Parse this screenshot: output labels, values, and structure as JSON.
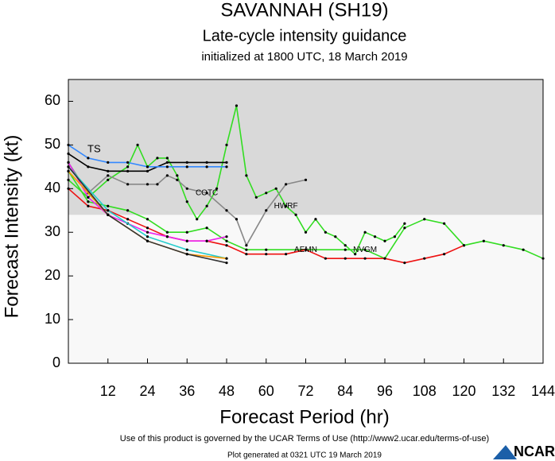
{
  "chart_data": {
    "type": "line",
    "title": "SAVANNAH (SH19)",
    "subtitle": "Late-cycle intensity guidance",
    "caption": "initialized at 1800 UTC, 18 March 2019",
    "x_label": "Forecast Period (hr)",
    "y_label": "Forecast Intensity (kt)",
    "xlim": [
      0,
      144
    ],
    "ylim": [
      0,
      65
    ],
    "xticks": [
      12,
      24,
      36,
      48,
      60,
      72,
      84,
      96,
      108,
      120,
      132,
      144
    ],
    "yticks": [
      0,
      10,
      20,
      30,
      40,
      50,
      60
    ],
    "shade_from": 34,
    "shade_color": "#d9d9d9",
    "band_label": "TS",
    "series": [
      {
        "name": "HWRF",
        "color": "#33dd22",
        "x": [
          0,
          6,
          12,
          18,
          21,
          24,
          27,
          30,
          33,
          36,
          39,
          42,
          45,
          48,
          51,
          54,
          57,
          60,
          63,
          66,
          69,
          72,
          75,
          78,
          81,
          84,
          87,
          90,
          93,
          96,
          99,
          102
        ],
        "values": [
          42,
          38,
          42,
          45,
          50,
          45,
          47,
          47,
          43,
          37,
          33,
          36,
          40,
          50,
          59,
          43,
          38,
          39,
          40,
          36,
          34,
          30,
          33,
          30,
          29,
          27,
          25,
          30,
          29,
          28,
          29,
          32
        ]
      },
      {
        "name": "NVGM",
        "color": "#33dd22",
        "x": [
          0,
          6,
          12,
          18,
          24,
          30,
          36,
          42,
          48,
          54,
          60,
          72,
          84,
          90,
          96,
          102,
          108,
          114,
          120,
          126,
          132,
          138,
          144
        ],
        "values": [
          44,
          37,
          36,
          35,
          33,
          30,
          30,
          31,
          28,
          26,
          26,
          26,
          26,
          26,
          24,
          31,
          33,
          32,
          27,
          28,
          27,
          26,
          24
        ]
      },
      {
        "name": "AEMN",
        "color": "#ee1111",
        "x": [
          0,
          6,
          12,
          18,
          24,
          30,
          36,
          42,
          48,
          54,
          60,
          66,
          72,
          78,
          84,
          90,
          96,
          102,
          108,
          114,
          120
        ],
        "values": [
          40,
          36,
          35,
          33,
          31,
          29,
          28,
          28,
          27,
          25,
          25,
          25,
          26,
          24,
          24,
          24,
          24,
          23,
          24,
          25,
          27
        ]
      },
      {
        "name": "COTC",
        "color": "#888888",
        "x": [
          0,
          6,
          12,
          18,
          24,
          27,
          30,
          33,
          36,
          42,
          48,
          51,
          54,
          60,
          66,
          72
        ],
        "values": [
          46,
          39,
          43,
          41,
          41,
          41,
          43,
          42,
          40,
          39,
          35,
          33,
          27,
          35,
          41,
          42
        ]
      },
      {
        "color": "#000000",
        "x": [
          0,
          6,
          12,
          18,
          24,
          30,
          36,
          42,
          48
        ],
        "values": [
          48,
          45,
          44,
          44,
          44,
          46,
          46,
          46,
          46
        ]
      },
      {
        "color": "#3388ff",
        "x": [
          0,
          6,
          12,
          18,
          24,
          30,
          36,
          42,
          48
        ],
        "values": [
          50,
          47,
          46,
          46,
          45,
          45,
          45,
          45,
          45
        ]
      },
      {
        "color": "#ee22ee",
        "x": [
          0,
          6,
          12,
          18,
          24,
          30,
          36,
          42,
          48
        ],
        "values": [
          46,
          38,
          34,
          32,
          30,
          29,
          28,
          28,
          29
        ]
      },
      {
        "color": "#22cccc",
        "x": [
          0,
          12,
          24,
          36,
          48
        ],
        "values": [
          45,
          35,
          29,
          26,
          24
        ]
      },
      {
        "color": "#ff9900",
        "x": [
          0,
          12,
          24,
          36,
          48
        ],
        "values": [
          44,
          34,
          28,
          25,
          24
        ]
      },
      {
        "color": "#333333",
        "x": [
          0,
          12,
          24,
          36,
          48
        ],
        "values": [
          45,
          34,
          28,
          25,
          23
        ]
      }
    ],
    "footer": "Use of this product is governed by the UCAR Terms of Use (http://www2.ucar.edu/terms-of-use)",
    "generated": "Plot generated at 0321 UTC  19 March 2019",
    "logo": "NCAR"
  }
}
